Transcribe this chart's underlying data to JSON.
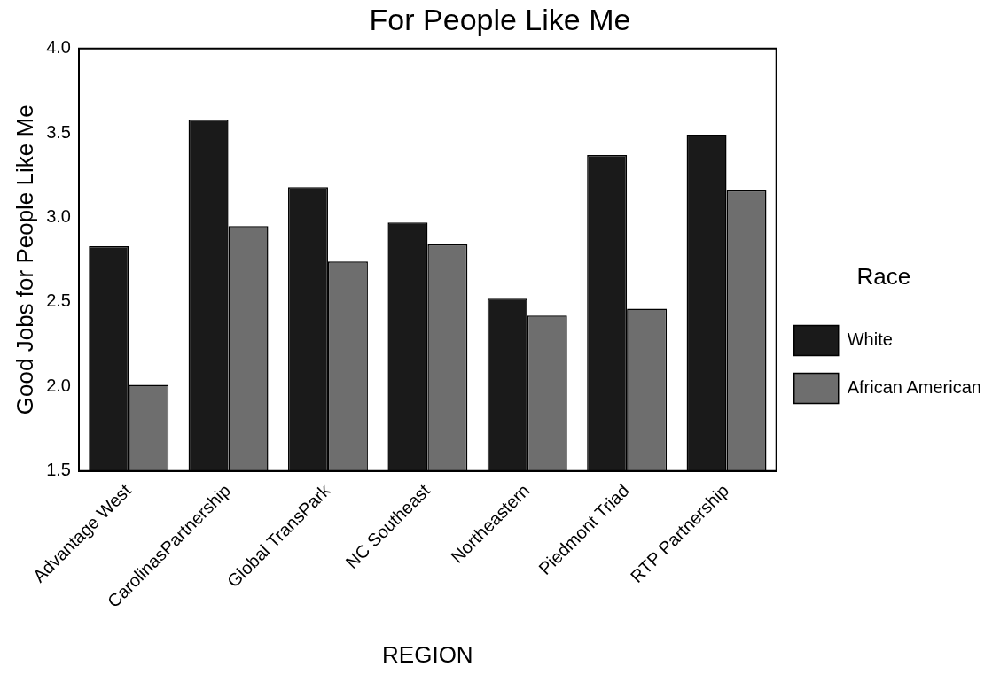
{
  "chart_data": {
    "type": "bar",
    "title": "For People Like Me",
    "xlabel": "REGION",
    "ylabel": "Good Jobs for People Like Me",
    "legend_title": "Race",
    "legend": "right",
    "categories": [
      "Advantage West",
      "CarolinasPartnership",
      "Global TransPark",
      "NC Southeast",
      "Northeastern",
      "Piedmont Triad",
      "RTP Partnership"
    ],
    "series": [
      {
        "name": "White",
        "color": "#1a1a1a",
        "values": [
          2.83,
          3.58,
          3.18,
          2.97,
          2.52,
          3.37,
          3.49
        ]
      },
      {
        "name": "African American",
        "color": "#6e6e6e",
        "values": [
          2.01,
          2.95,
          2.74,
          2.84,
          2.42,
          2.46,
          3.16
        ]
      }
    ],
    "ylim": [
      1.5,
      4.0
    ],
    "yticks": [
      {
        "value": 1.5,
        "label": "1.5"
      },
      {
        "value": 2,
        "label": "2.0"
      },
      {
        "value": 2.5,
        "label": "2.5"
      },
      {
        "value": 3,
        "label": "3.0"
      },
      {
        "value": 3.5,
        "label": "3.5"
      },
      {
        "value": 4,
        "label": "4.0"
      }
    ],
    "grid": false
  }
}
